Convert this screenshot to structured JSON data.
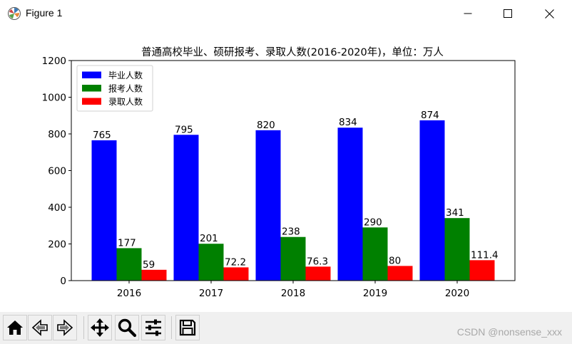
{
  "window": {
    "title": "Figure 1",
    "buttons": [
      "minimize",
      "maximize",
      "close"
    ]
  },
  "toolbar": {
    "items": [
      "home-icon",
      "back-icon",
      "forward-icon",
      "pan-icon",
      "zoom-icon",
      "configure-subplots-icon",
      "save-icon"
    ]
  },
  "watermark": "CSDN @nonsense_xxx",
  "chart_data": {
    "type": "bar",
    "title": "普通高校毕业、硕研报考、录取人数(2016-2020年)，单位：万人",
    "xlabel": "",
    "ylabel": "",
    "categories": [
      "2016",
      "2017",
      "2018",
      "2019",
      "2020"
    ],
    "series": [
      {
        "name": "毕业人数",
        "color": "#0000ff",
        "values": [
          765,
          795,
          820,
          834,
          874
        ],
        "labels": [
          "765",
          "795",
          "820",
          "834",
          "874"
        ]
      },
      {
        "name": "报考人数",
        "color": "#008000",
        "values": [
          177,
          201,
          238,
          290,
          341
        ],
        "labels": [
          "177",
          "201",
          "238",
          "290",
          "341"
        ]
      },
      {
        "name": "录取人数",
        "color": "#ff0000",
        "values": [
          59,
          72.2,
          76.3,
          80,
          111.4
        ],
        "labels": [
          "59",
          "72.2",
          "76.3",
          "80",
          "111.4"
        ]
      }
    ],
    "ylim": [
      0,
      1200
    ],
    "yticks": [
      0,
      200,
      400,
      600,
      800,
      1000,
      1200
    ],
    "grid": false,
    "legend": "upper-left"
  }
}
